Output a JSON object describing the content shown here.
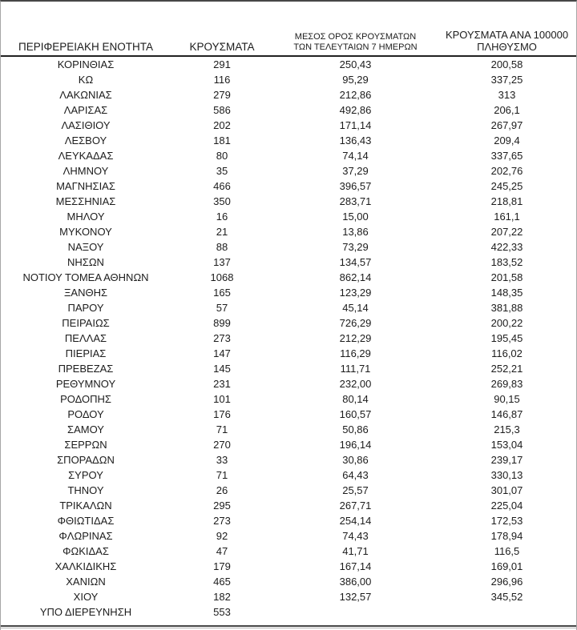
{
  "page": {
    "background": "#ffffff",
    "kind": "regional-cases-report-table"
  },
  "colors": {
    "text": "#1c1c1c",
    "top_rule": "#474747",
    "header_rule": "#222222",
    "bottom_rule": "#474747",
    "bottom_rule_shadow": "#b3b3b3",
    "side_rule": "#a6a6a6"
  },
  "table": {
    "columns": [
      {
        "label": "ΠΕΡΙΦΕΡΕΙΑΚΗ ΕΝΟΤΗΤΑ"
      },
      {
        "label": "ΚΡΟΥΣΜΑΤΑ"
      },
      {
        "label_line1": "ΜΕΣΟΣ ΟΡΟΣ ΚΡΟΥΣΜΑΤΩΝ",
        "label_line2": "ΤΩΝ ΤΕΛΕΥΤΑΙΩΝ 7 ΗΜΕΡΩΝ"
      },
      {
        "label_line1": "ΚΡΟΥΣΜΑΤΑ ΑΝΑ 100000",
        "label_line2": "ΠΛΗΘΥΣΜΟ"
      }
    ],
    "rows": [
      [
        "ΚΟΡΙΝΘΙΑΣ",
        "291",
        "250,43",
        "200,58"
      ],
      [
        "ΚΩ",
        "116",
        "95,29",
        "337,25"
      ],
      [
        "ΛΑΚΩΝΙΑΣ",
        "279",
        "212,86",
        "313"
      ],
      [
        "ΛΑΡΙΣΑΣ",
        "586",
        "492,86",
        "206,1"
      ],
      [
        "ΛΑΣΙΘΙΟΥ",
        "202",
        "171,14",
        "267,97"
      ],
      [
        "ΛΕΣΒΟΥ",
        "181",
        "136,43",
        "209,4"
      ],
      [
        "ΛΕΥΚΑΔΑΣ",
        "80",
        "74,14",
        "337,65"
      ],
      [
        "ΛΗΜΝΟΥ",
        "35",
        "37,29",
        "202,76"
      ],
      [
        "ΜΑΓΝΗΣΙΑΣ",
        "466",
        "396,57",
        "245,25"
      ],
      [
        "ΜΕΣΣΗΝΙΑΣ",
        "350",
        "283,71",
        "218,81"
      ],
      [
        "ΜΗΛΟΥ",
        "16",
        "15,00",
        "161,1"
      ],
      [
        "ΜΥΚΟΝΟΥ",
        "21",
        "13,86",
        "207,22"
      ],
      [
        "ΝΑΞΟΥ",
        "88",
        "73,29",
        "422,33"
      ],
      [
        "ΝΗΣΩΝ",
        "137",
        "134,57",
        "183,52"
      ],
      [
        "ΝΟΤΙΟΥ ΤΟΜΕΑ ΑΘΗΝΩΝ",
        "1068",
        "862,14",
        "201,58"
      ],
      [
        "ΞΑΝΘΗΣ",
        "165",
        "123,29",
        "148,35"
      ],
      [
        "ΠΑΡΟΥ",
        "57",
        "45,14",
        "381,88"
      ],
      [
        "ΠΕΙΡΑΙΩΣ",
        "899",
        "726,29",
        "200,22"
      ],
      [
        "ΠΕΛΛΑΣ",
        "273",
        "212,29",
        "195,45"
      ],
      [
        "ΠΙΕΡΙΑΣ",
        "147",
        "116,29",
        "116,02"
      ],
      [
        "ΠΡΕΒΕΖΑΣ",
        "145",
        "111,71",
        "252,21"
      ],
      [
        "ΡΕΘΥΜΝΟΥ",
        "231",
        "232,00",
        "269,83"
      ],
      [
        "ΡΟΔΟΠΗΣ",
        "101",
        "80,14",
        "90,15"
      ],
      [
        "ΡΟΔΟΥ",
        "176",
        "160,57",
        "146,87"
      ],
      [
        "ΣΑΜΟΥ",
        "71",
        "50,86",
        "215,3"
      ],
      [
        "ΣΕΡΡΩΝ",
        "270",
        "196,14",
        "153,04"
      ],
      [
        "ΣΠΟΡΑΔΩΝ",
        "33",
        "30,86",
        "239,17"
      ],
      [
        "ΣΥΡΟΥ",
        "71",
        "64,43",
        "330,13"
      ],
      [
        "ΤΗΝΟΥ",
        "26",
        "25,57",
        "301,07"
      ],
      [
        "ΤΡΙΚΑΛΩΝ",
        "295",
        "267,71",
        "225,04"
      ],
      [
        "ΦΘΙΩΤΙΔΑΣ",
        "273",
        "254,14",
        "172,53"
      ],
      [
        "ΦΛΩΡΙΝΑΣ",
        "92",
        "74,43",
        "178,94"
      ],
      [
        "ΦΩΚΙΔΑΣ",
        "47",
        "41,71",
        "116,5"
      ],
      [
        "ΧΑΛΚΙΔΙΚΗΣ",
        "179",
        "167,14",
        "169,01"
      ],
      [
        "ΧΑΝΙΩΝ",
        "465",
        "386,00",
        "296,96"
      ],
      [
        "ΧΙΟΥ",
        "182",
        "132,57",
        "345,52"
      ],
      [
        "ΥΠΟ ΔΙΕΡΕΥΝΗΣΗ",
        "553",
        "",
        ""
      ]
    ]
  }
}
